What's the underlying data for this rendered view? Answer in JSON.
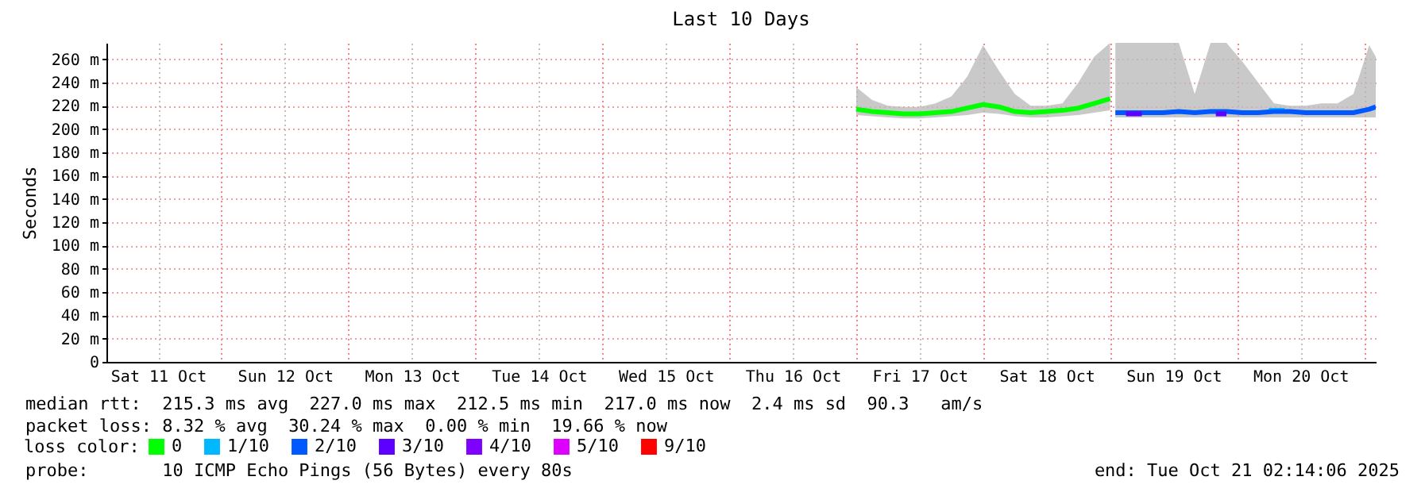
{
  "chart_data": {
    "type": "line",
    "title": "Last 10 Days",
    "ylabel": "Seconds",
    "legend_title": "loss color:",
    "legend": "bottom",
    "grid": true,
    "xlim": [
      "2025-10-11T02:14",
      "2025-10-21T02:14"
    ],
    "xticks": [
      {
        "value": "2025-10-11T12:00",
        "label": "Sat 11 Oct"
      },
      {
        "value": "2025-10-12T00:00",
        "label": null
      },
      {
        "value": "2025-10-12T12:00",
        "label": "Sun 12 Oct"
      },
      {
        "value": "2025-10-13T00:00",
        "label": null
      },
      {
        "value": "2025-10-13T12:00",
        "label": "Mon 13 Oct"
      },
      {
        "value": "2025-10-14T00:00",
        "label": null
      },
      {
        "value": "2025-10-14T12:00",
        "label": "Tue 14 Oct"
      },
      {
        "value": "2025-10-15T00:00",
        "label": null
      },
      {
        "value": "2025-10-15T12:00",
        "label": "Wed 15 Oct"
      },
      {
        "value": "2025-10-16T00:00",
        "label": null
      },
      {
        "value": "2025-10-16T12:00",
        "label": "Thu 16 Oct"
      },
      {
        "value": "2025-10-17T00:00",
        "label": null
      },
      {
        "value": "2025-10-17T12:00",
        "label": "Fri 17 Oct"
      },
      {
        "value": "2025-10-18T00:00",
        "label": null
      },
      {
        "value": "2025-10-18T12:00",
        "label": "Sat 18 Oct"
      },
      {
        "value": "2025-10-19T00:00",
        "label": null
      },
      {
        "value": "2025-10-19T12:00",
        "label": "Sun 19 Oct"
      },
      {
        "value": "2025-10-20T00:00",
        "label": null
      },
      {
        "value": "2025-10-20T12:00",
        "label": "Mon 20 Oct"
      },
      {
        "value": "2025-10-21T00:00",
        "label": null
      }
    ],
    "ylim": [
      0,
      274
    ],
    "yticks": [
      0,
      {
        "value": 20,
        "label": "20 m"
      },
      {
        "value": 40,
        "label": "40 m"
      },
      {
        "value": 60,
        "label": "60 m"
      },
      {
        "value": 80,
        "label": "80 m"
      },
      {
        "value": 100,
        "label": "100 m"
      },
      {
        "value": 120,
        "label": "120 m"
      },
      {
        "value": 140,
        "label": "140 m"
      },
      {
        "value": 160,
        "label": "160 m"
      },
      {
        "value": 180,
        "label": "180 m"
      },
      {
        "value": 200,
        "label": "200 m"
      },
      {
        "value": 220,
        "label": "220 m"
      },
      {
        "value": 240,
        "label": "240 m"
      },
      {
        "value": 260,
        "label": "260 m"
      }
    ],
    "series": [
      {
        "name": "0",
        "color": "#00ff00",
        "x": [
          "2025-10-17T00:00",
          "2025-10-17T03:00",
          "2025-10-17T06:00",
          "2025-10-17T09:00",
          "2025-10-17T12:00",
          "2025-10-17T15:00",
          "2025-10-17T18:00",
          "2025-10-17T21:00",
          "2025-10-18T00:00",
          "2025-10-18T03:00",
          "2025-10-18T06:00",
          "2025-10-18T09:00",
          "2025-10-18T12:00",
          "2025-10-18T15:00",
          "2025-10-18T18:00",
          "2025-10-18T21:00",
          "2025-10-19T00:00"
        ],
        "values": [
          217,
          215,
          214,
          213,
          213,
          214,
          215,
          218,
          221,
          219,
          215,
          214,
          215,
          216,
          218,
          222,
          226
        ],
        "lower": [
          212,
          211,
          210,
          209,
          209,
          210,
          211,
          212,
          214,
          213,
          211,
          210,
          210,
          211,
          212,
          214,
          216
        ],
        "upper": [
          236,
          225,
          220,
          219,
          219,
          222,
          228,
          245,
          272,
          250,
          230,
          220,
          220,
          222,
          240,
          262,
          274
        ]
      },
      {
        "name": "1/10",
        "color": "#00b8ff",
        "x": [
          "2025-10-20T06:00",
          "2025-10-20T09:00"
        ],
        "values": [
          216,
          216
        ]
      },
      {
        "name": "2/10",
        "color": "#0059ff",
        "x": [
          "2025-10-19T01:00",
          "2025-10-19T04:00",
          "2025-10-19T07:00",
          "2025-10-19T10:00",
          "2025-10-19T13:00",
          "2025-10-19T16:00",
          "2025-10-19T19:00",
          "2025-10-19T22:00",
          "2025-10-20T01:00",
          "2025-10-20T04:00",
          "2025-10-20T07:00",
          "2025-10-20T10:00",
          "2025-10-20T13:00",
          "2025-10-20T16:00",
          "2025-10-20T19:00",
          "2025-10-20T22:00",
          "2025-10-21T01:00",
          "2025-10-21T02:14"
        ],
        "values": [
          214,
          214,
          214,
          214,
          215,
          214,
          215,
          215,
          214,
          214,
          215,
          215,
          214,
          214,
          214,
          214,
          217,
          219
        ],
        "lower": [
          210,
          210,
          210,
          210,
          210,
          210,
          210,
          210,
          210,
          210,
          210,
          210,
          210,
          210,
          210,
          210,
          210,
          210
        ],
        "upper": [
          274,
          274,
          274,
          274,
          274,
          230,
          274,
          274,
          258,
          240,
          222,
          220,
          220,
          222,
          222,
          230,
          272,
          262
        ]
      },
      {
        "name": "3/10",
        "color": "#5e00ff",
        "x": [
          "2025-10-19T03:00",
          "2025-10-19T06:00",
          "2025-10-19T12:00",
          "2025-10-19T20:00",
          "2025-10-19T22:00"
        ],
        "values": [
          213,
          213,
          null,
          213,
          213
        ]
      },
      {
        "name": "4/10",
        "color": "#7e00ff"
      },
      {
        "name": "5/10",
        "color": "#dd00ff"
      },
      {
        "name": "9/10",
        "color": "#ff0000"
      }
    ],
    "annotations": [
      "median rtt:  215.3 ms avg  227.0 ms max  212.5 ms min  217.0 ms now  2.4 ms sd  90.3   am/s",
      "packet loss: 8.32 % avg  30.24 % max  0.00 % min  19.66 % now",
      "probe:       10 ICMP Echo Pings (56 Bytes) every 80s",
      "end: Tue Oct 21 02:14:06 2025"
    ]
  }
}
